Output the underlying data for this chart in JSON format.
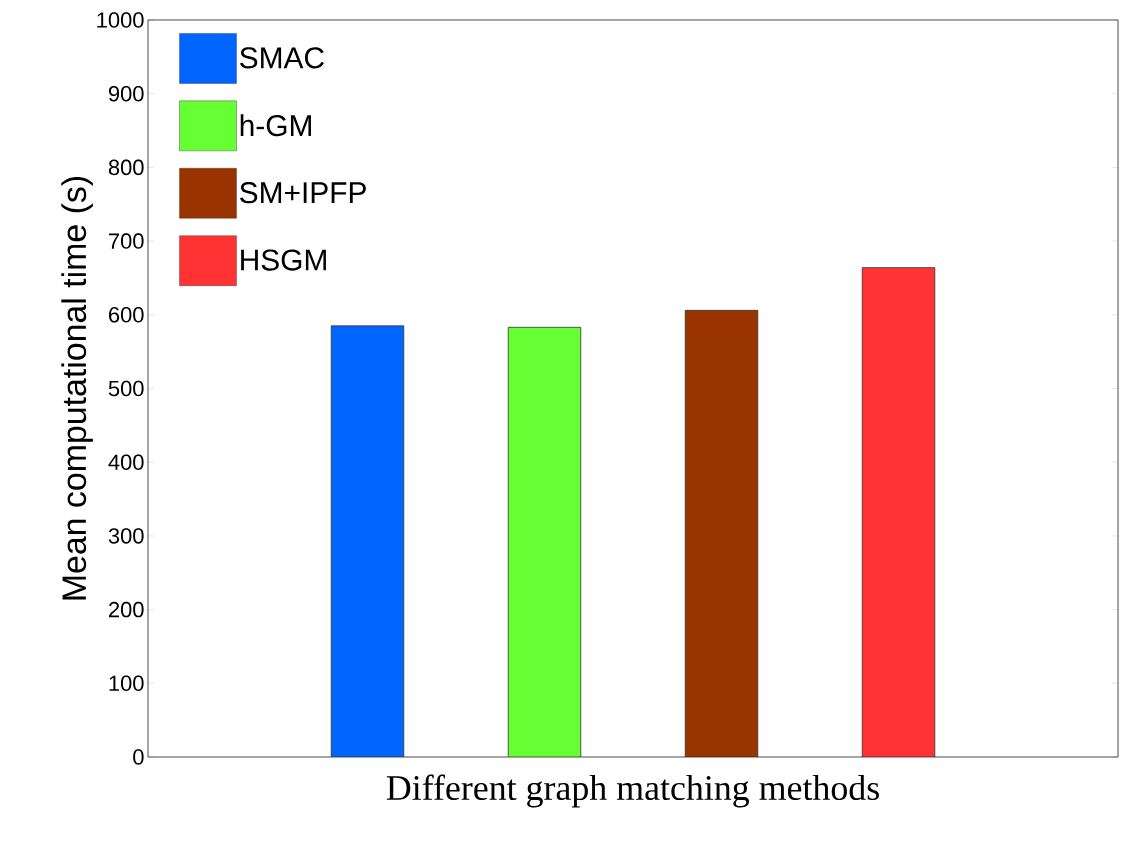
{
  "chart_data": {
    "type": "bar",
    "xlabel": "Different graph matching methods",
    "ylabel": "Mean computational time (s)",
    "categories": [
      null,
      null,
      null,
      null
    ],
    "series": [
      {
        "name": "SMAC",
        "color": "#0066ff",
        "values": [
          585,
          null,
          null,
          null
        ]
      },
      {
        "name": "h-GM",
        "color": "#66ff33",
        "values": [
          null,
          583,
          null,
          null
        ]
      },
      {
        "name": "SM+IPFP",
        "color": "#993300",
        "values": [
          null,
          null,
          606,
          null
        ]
      },
      {
        "name": "HSGM",
        "color": "#ff3333",
        "values": [
          null,
          null,
          null,
          664
        ]
      }
    ],
    "ylim": [
      0,
      1000
    ],
    "yticks": [
      0,
      100,
      200,
      300,
      400,
      500,
      600,
      700,
      800,
      900,
      1000
    ],
    "grid": false,
    "legend": "top left",
    "stacked": true
  }
}
